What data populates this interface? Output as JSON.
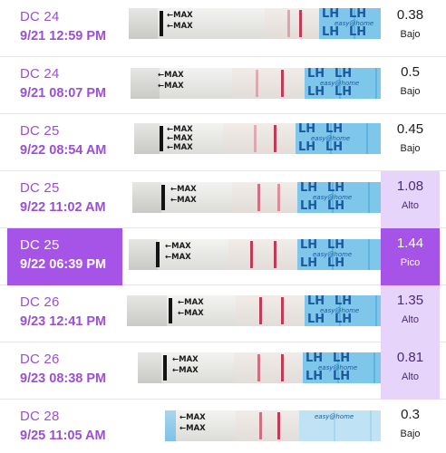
{
  "strip_labels": {
    "max": "←MAX",
    "lh": "LH",
    "brand": "easy@home"
  },
  "colors": {
    "accent": "#a653e8",
    "high_bg": "#e6d4fb",
    "label_purple": "#9b4fd6"
  },
  "rows": [
    {
      "day": "DC 24",
      "datetime": "9/21   12:59 PM",
      "value": "0.38",
      "level": "Bajo",
      "highlight": "none"
    },
    {
      "day": "DC 24",
      "datetime": "9/21   08:07 PM",
      "value": "0.5",
      "level": "Bajo",
      "highlight": "none"
    },
    {
      "day": "DC 25",
      "datetime": "9/22   08:54 AM",
      "value": "0.45",
      "level": "Bajo",
      "highlight": "none"
    },
    {
      "day": "DC 25",
      "datetime": "9/22   11:02 AM",
      "value": "1.08",
      "level": "Alto",
      "highlight": "high"
    },
    {
      "day": "DC 25",
      "datetime": "9/22   06:39 PM",
      "value": "1.44",
      "level": "Pico",
      "highlight": "peak"
    },
    {
      "day": "DC 26",
      "datetime": "9/23   12:41 PM",
      "value": "1.35",
      "level": "Alto",
      "highlight": "high"
    },
    {
      "day": "DC 26",
      "datetime": "9/23   08:38 PM",
      "value": "0.81",
      "level": "Alto",
      "highlight": "high"
    },
    {
      "day": "DC 28",
      "datetime": "9/25   11:05 AM",
      "value": "0.3",
      "level": "Bajo",
      "highlight": "none"
    }
  ]
}
